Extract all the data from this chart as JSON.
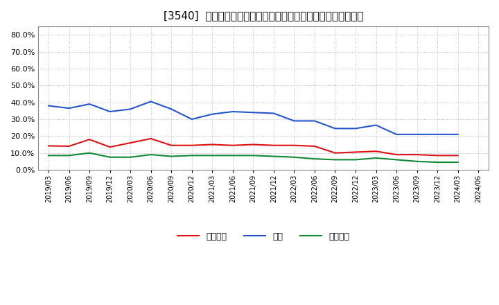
{
  "title": "[3540]  売上債権、在庫、買入債務の総資産に対する比率の推移",
  "x_labels": [
    "2019/03",
    "2019/06",
    "2019/09",
    "2019/12",
    "2020/03",
    "2020/06",
    "2020/09",
    "2020/12",
    "2021/03",
    "2021/06",
    "2021/09",
    "2021/12",
    "2022/03",
    "2022/06",
    "2022/09",
    "2022/12",
    "2023/03",
    "2023/06",
    "2023/09",
    "2023/12",
    "2024/03",
    "2024/06"
  ],
  "uriage_saiken": [
    14.2,
    14.0,
    18.0,
    13.5,
    16.0,
    18.5,
    14.5,
    14.5,
    15.0,
    14.5,
    15.0,
    14.5,
    14.5,
    14.0,
    10.0,
    10.5,
    11.0,
    9.0,
    9.0,
    8.5,
    8.5,
    null
  ],
  "zaiko": [
    38.0,
    36.5,
    39.0,
    34.5,
    36.0,
    40.5,
    36.0,
    30.0,
    33.0,
    34.5,
    34.0,
    33.5,
    29.0,
    29.0,
    24.5,
    24.5,
    26.5,
    21.0,
    21.0,
    21.0,
    21.0,
    null
  ],
  "kaiire_saimu": [
    8.5,
    8.5,
    10.0,
    7.5,
    7.5,
    9.0,
    8.0,
    8.5,
    8.5,
    8.5,
    8.5,
    8.0,
    7.5,
    6.5,
    6.0,
    6.0,
    7.0,
    6.0,
    5.0,
    4.5,
    4.5,
    null
  ],
  "legend_labels_jp": [
    "売上債権",
    "在庫",
    "買入債務"
  ],
  "line_colors": [
    "#dd1111",
    "#2255cc",
    "#118833"
  ],
  "ylim": [
    0.0,
    0.85
  ],
  "yticks": [
    0.0,
    0.1,
    0.2,
    0.3,
    0.4,
    0.5,
    0.6,
    0.7,
    0.8
  ],
  "background_color": "#ffffff",
  "plot_bg_color": "#ffffff",
  "grid_color": "#aaaacc",
  "title_fontsize": 11,
  "grid_linestyle": "dotted"
}
